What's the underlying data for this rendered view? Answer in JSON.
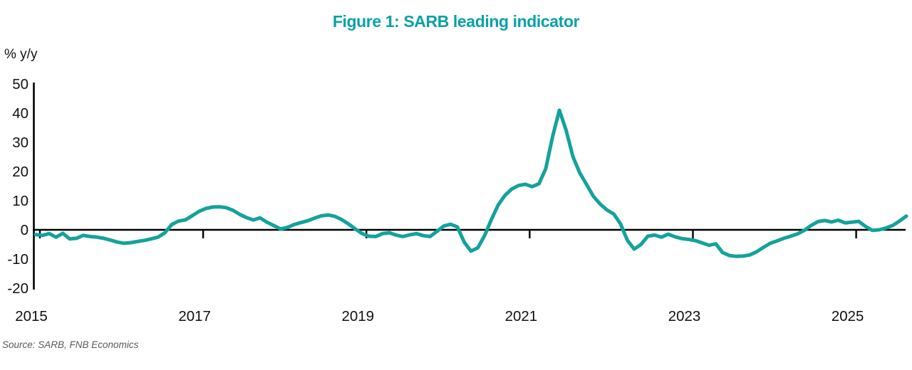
{
  "title": "Figure 1: SARB leading indicator",
  "axis_label": "% y/y",
  "source": "Source: SARB, FNB Economics",
  "colors": {
    "line": "#14A29C",
    "title": "#0AA1A8",
    "axis": "#000000",
    "tick_text": "#111111",
    "source_text": "#595959"
  },
  "chart_data": {
    "type": "line",
    "series_name": "SARB leading indicator",
    "unit": "% y/y",
    "frequency": "monthly",
    "start_year": 2015,
    "start_month": 1,
    "end_label": "2025-09",
    "x_tick_labels": [
      "2015",
      "2017",
      "2019",
      "2021",
      "2023",
      "2025"
    ],
    "y_ticks": [
      50,
      40,
      30,
      20,
      10,
      0,
      -10,
      -20
    ],
    "ylim": [
      -20,
      50
    ],
    "grid": false,
    "legend": "none",
    "values": [
      -1.6,
      -1.9,
      -1.3,
      -2.5,
      -1.2,
      -3.1,
      -2.9,
      -1.9,
      -2.3,
      -2.5,
      -2.9,
      -3.5,
      -4.2,
      -4.6,
      -4.4,
      -4.0,
      -3.6,
      -3.1,
      -2.5,
      -1.0,
      1.8,
      3.0,
      3.4,
      4.8,
      6.3,
      7.3,
      7.8,
      7.9,
      7.6,
      6.7,
      5.3,
      4.2,
      3.4,
      4.1,
      2.6,
      1.5,
      0.3,
      0.8,
      1.8,
      2.5,
      3.1,
      4.0,
      4.8,
      5.1,
      4.6,
      3.5,
      2.0,
      0.3,
      -1.3,
      -2.2,
      -2.3,
      -1.3,
      -1.0,
      -1.8,
      -2.3,
      -1.7,
      -1.3,
      -2.0,
      -2.3,
      -0.5,
      1.3,
      1.9,
      1.0,
      -4.2,
      -7.3,
      -6.2,
      -2.0,
      3.5,
      8.5,
      11.8,
      14.0,
      15.2,
      15.6,
      14.8,
      15.8,
      21.0,
      32.0,
      41.0,
      34.0,
      25.0,
      19.5,
      15.5,
      11.5,
      8.8,
      6.8,
      5.4,
      2.0,
      -3.6,
      -6.6,
      -5.0,
      -2.2,
      -1.8,
      -2.5,
      -1.5,
      -2.4,
      -3.0,
      -3.3,
      -3.7,
      -4.5,
      -5.3,
      -4.8,
      -7.8,
      -8.8,
      -9.1,
      -9.0,
      -8.6,
      -7.5,
      -6.0,
      -4.6,
      -3.8,
      -2.9,
      -2.2,
      -1.4,
      -0.2,
      1.5,
      2.8,
      3.2,
      2.7,
      3.3,
      2.4,
      2.6,
      2.9,
      1.2,
      -0.2,
      0.0,
      0.6,
      1.5,
      3.0,
      4.7
    ]
  }
}
